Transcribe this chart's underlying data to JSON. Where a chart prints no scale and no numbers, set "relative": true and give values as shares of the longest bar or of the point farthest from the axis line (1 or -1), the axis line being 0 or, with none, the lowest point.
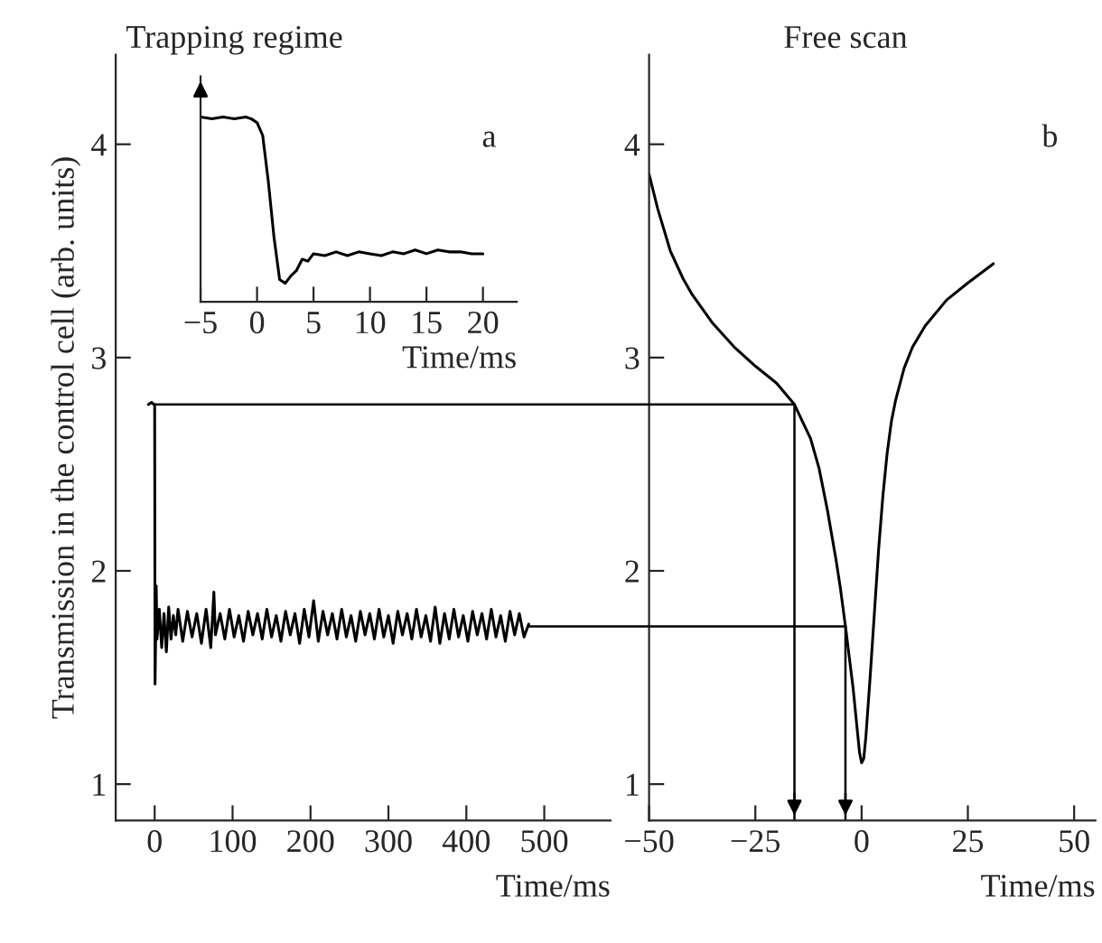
{
  "chart_data": [
    {
      "type": "line",
      "title": "Trapping regime",
      "xlabel": "Time/ms",
      "ylabel": "Transmission in the control cell (arb. units)",
      "annotations": [
        "a"
      ],
      "xlim": [
        -50,
        585
      ],
      "xticks": [
        0,
        100,
        200,
        300,
        400,
        500
      ],
      "ylim": [
        0.83,
        4.42
      ],
      "yticks": [
        1,
        2,
        3,
        4
      ],
      "grid": false,
      "legend": false,
      "marker": "none",
      "line_style": "solid",
      "series": [
        {
          "color": "#000000",
          "x": [
            -8,
            -4,
            -1,
            0,
            0.5,
            1.5,
            2,
            3,
            6,
            9,
            12,
            15,
            18,
            21,
            24,
            27,
            30,
            36,
            42,
            48,
            54,
            60,
            66,
            72,
            76,
            78,
            84,
            90,
            96,
            102,
            108,
            114,
            120,
            126,
            132,
            138,
            144,
            150,
            156,
            162,
            168,
            174,
            180,
            186,
            192,
            198,
            204,
            210,
            216,
            222,
            228,
            234,
            240,
            246,
            252,
            258,
            264,
            270,
            276,
            282,
            288,
            294,
            300,
            306,
            312,
            318,
            324,
            330,
            336,
            342,
            348,
            354,
            360,
            366,
            372,
            378,
            384,
            390,
            396,
            402,
            408,
            414,
            420,
            426,
            432,
            438,
            444,
            450,
            456,
            462,
            468,
            474,
            480
          ],
          "values": [
            2.78,
            2.79,
            2.78,
            2.78,
            1.47,
            1.75,
            1.93,
            1.68,
            1.82,
            1.64,
            1.8,
            1.62,
            1.83,
            1.68,
            1.79,
            1.7,
            1.82,
            1.67,
            1.81,
            1.69,
            1.8,
            1.66,
            1.82,
            1.64,
            1.9,
            1.7,
            1.8,
            1.68,
            1.82,
            1.69,
            1.79,
            1.67,
            1.81,
            1.7,
            1.8,
            1.68,
            1.82,
            1.69,
            1.79,
            1.67,
            1.81,
            1.7,
            1.8,
            1.66,
            1.82,
            1.69,
            1.86,
            1.67,
            1.81,
            1.7,
            1.8,
            1.68,
            1.82,
            1.69,
            1.79,
            1.67,
            1.81,
            1.7,
            1.8,
            1.68,
            1.82,
            1.69,
            1.79,
            1.66,
            1.81,
            1.7,
            1.8,
            1.68,
            1.82,
            1.69,
            1.79,
            1.67,
            1.83,
            1.66,
            1.8,
            1.68,
            1.82,
            1.69,
            1.79,
            1.67,
            1.81,
            1.7,
            1.8,
            1.68,
            1.82,
            1.69,
            1.79,
            1.67,
            1.81,
            1.7,
            1.8,
            1.69,
            1.75
          ]
        }
      ]
    },
    {
      "type": "line",
      "xlabel": "Time/ms",
      "relative": true,
      "tick_labels": "x",
      "xlim": [
        -5,
        23
      ],
      "xticks": [
        {
          "value": -5,
          "label": "−5"
        },
        0,
        5,
        10,
        15,
        20
      ],
      "grid": false,
      "legend": false,
      "marker": "none",
      "line_style": "solid",
      "series": [
        {
          "color": "#000000",
          "x": [
            -5,
            -4,
            -3,
            -2,
            -1,
            -0.5,
            0,
            0.5,
            1,
            1.5,
            2,
            2.5,
            3,
            3.5,
            4,
            4.5,
            5,
            6,
            7,
            8,
            9,
            10,
            11,
            12,
            13,
            14,
            15,
            16,
            17,
            18,
            19,
            20
          ],
          "values": [
            1.0,
            0.99,
            1.0,
            0.99,
            1.0,
            0.99,
            0.97,
            0.9,
            0.65,
            0.35,
            0.12,
            0.1,
            0.14,
            0.17,
            0.23,
            0.22,
            0.26,
            0.25,
            0.27,
            0.25,
            0.27,
            0.26,
            0.25,
            0.27,
            0.26,
            0.28,
            0.26,
            0.28,
            0.27,
            0.27,
            0.26,
            0.26
          ]
        }
      ]
    },
    {
      "type": "line",
      "title": "Free scan",
      "xlabel": "Time/ms",
      "annotations": [
        "b"
      ],
      "xlim": [
        -50,
        55
      ],
      "xticks": [
        {
          "value": -50,
          "label": "−50"
        },
        {
          "value": -25,
          "label": "−25"
        },
        0,
        25,
        50
      ],
      "ylim": [
        0.83,
        4.42
      ],
      "yticks": [
        1,
        2,
        3,
        4
      ],
      "grid": false,
      "legend": false,
      "marker": "none",
      "line_style": "solid",
      "ref_lines": [
        {
          "axis": "y",
          "value": 2.78
        },
        {
          "axis": "y",
          "value": 1.74
        },
        {
          "axis": "x",
          "value": -15.8
        },
        {
          "axis": "x",
          "value": -3.8
        }
      ],
      "series": [
        {
          "color": "#000000",
          "x": [
            -50,
            -48,
            -45,
            -42,
            -40,
            -35,
            -30,
            -25,
            -20,
            -15.8,
            -12,
            -10,
            -8,
            -6,
            -5,
            -3.8,
            -2,
            -1,
            -0.5,
            0,
            0.5,
            1,
            2,
            3,
            4,
            5,
            6,
            7,
            8,
            10,
            12,
            15,
            20,
            25,
            31
          ],
          "values": [
            3.86,
            3.7,
            3.5,
            3.37,
            3.3,
            3.16,
            3.05,
            2.96,
            2.88,
            2.78,
            2.62,
            2.48,
            2.28,
            2.05,
            1.92,
            1.74,
            1.45,
            1.25,
            1.15,
            1.1,
            1.12,
            1.22,
            1.5,
            1.8,
            2.1,
            2.35,
            2.55,
            2.7,
            2.8,
            2.95,
            3.05,
            3.15,
            3.27,
            3.35,
            3.44
          ]
        }
      ]
    }
  ]
}
